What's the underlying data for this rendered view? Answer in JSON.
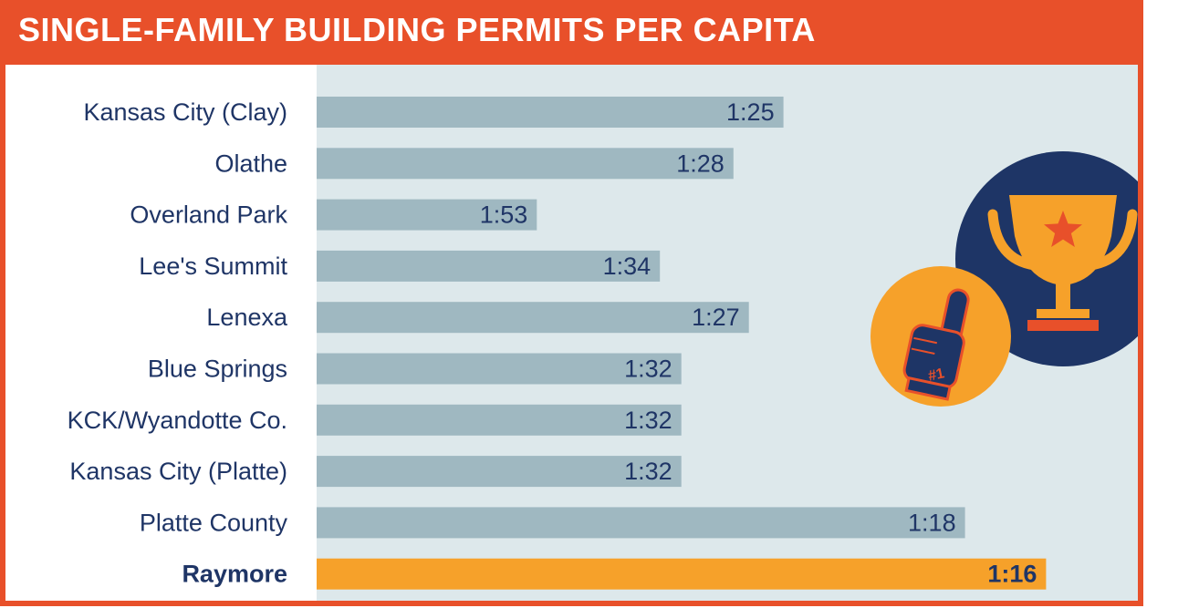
{
  "header": {
    "title": "SINGLE-FAMILY BUILDING PERMITS PER CAPITA"
  },
  "colors": {
    "frame": "#e8502a",
    "bar": "#9fb8c1",
    "highlight_bar": "#f6a12a",
    "text": "#1f3566",
    "plot_background": "#dde8eb",
    "badge_navy": "#1e3566",
    "badge_orange": "#f6a12a"
  },
  "icons": [
    "trophy-icon",
    "foam-finger-number-one-icon"
  ],
  "chart_data": {
    "type": "bar",
    "orientation": "horizontal",
    "title": "SINGLE-FAMILY BUILDING PERMITS PER CAPITA",
    "categories": [
      "Kansas City (Clay)",
      "Olathe",
      "Overland Park",
      "Lee's Summit",
      "Lenexa",
      "Blue Springs",
      "KCK/Wyandotte Co.",
      "Kansas City (Platte)",
      "Platte County",
      "Raymore"
    ],
    "values": [
      25,
      28,
      53,
      34,
      27,
      32,
      32,
      32,
      18,
      16
    ],
    "labels": [
      "1:25",
      "1:28",
      "1:53",
      "1:34",
      "1:27",
      "1:32",
      "1:32",
      "1:32",
      "1:18",
      "1:16"
    ],
    "highlight": "Raymore",
    "grid": false,
    "legend": "none"
  }
}
